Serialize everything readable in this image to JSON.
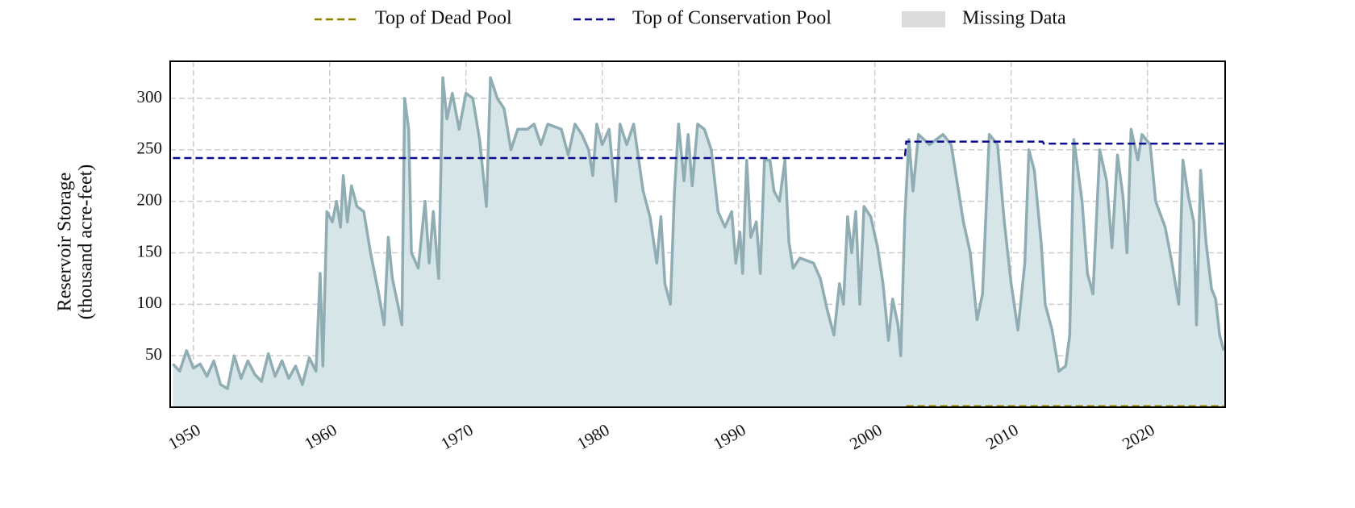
{
  "chart_data": {
    "type": "line",
    "ylabel": [
      "Reservoir Storage",
      "(thousand acre-feet)"
    ],
    "xlim": [
      1948.3,
      2025.7
    ],
    "ylim": [
      0,
      336
    ],
    "xticks": [
      1950,
      1960,
      1970,
      1980,
      1990,
      2000,
      2010,
      2020
    ],
    "yticks": [
      50,
      100,
      150,
      200,
      250,
      300
    ],
    "grid": true,
    "legend": "top",
    "series": [
      {
        "name": "Top of Dead Pool",
        "color": "#8b8000",
        "style": "dashed",
        "x": [
          2002.3,
          2025.6
        ],
        "values": [
          1,
          1
        ]
      },
      {
        "name": "Top of Conservation Pool",
        "color": "#0a0a8c",
        "style": "dashed",
        "x": [
          1948.5,
          2002.2,
          2002.3,
          2012.3,
          2012.4,
          2025.6
        ],
        "values": [
          242,
          242,
          258,
          258,
          256,
          256
        ]
      },
      {
        "name": "Missing Data",
        "color": "#dcdcdc",
        "style": "band",
        "x": [],
        "values": []
      },
      {
        "color": "#8fadb3",
        "fill": "#d6e5e7",
        "style": "area",
        "x": [
          1948.5,
          1949,
          1949.5,
          1950,
          1950.5,
          1951,
          1951.5,
          1952,
          1952.5,
          1953,
          1953.5,
          1954,
          1954.5,
          1955,
          1955.5,
          1956,
          1956.5,
          1957,
          1957.5,
          1958,
          1958.5,
          1959,
          1959.3,
          1959.5,
          1959.8,
          1960.2,
          1960.5,
          1960.8,
          1961,
          1961.3,
          1961.6,
          1962,
          1962.5,
          1963,
          1963.3,
          1963.6,
          1964,
          1964.3,
          1964.6,
          1965,
          1965.3,
          1965.5,
          1965.8,
          1966,
          1966.5,
          1967,
          1967.3,
          1967.6,
          1968,
          1968.3,
          1968.6,
          1969,
          1969.5,
          1970,
          1970.5,
          1971,
          1971.5,
          1971.8,
          1972.3,
          1972.8,
          1973.3,
          1973.8,
          1974.5,
          1975,
          1975.5,
          1976,
          1977,
          1977.5,
          1978,
          1978.5,
          1979,
          1979.3,
          1979.6,
          1980,
          1980.5,
          1981,
          1981.3,
          1981.8,
          1982.3,
          1983,
          1983.5,
          1984,
          1984.3,
          1984.6,
          1985,
          1985.3,
          1985.6,
          1986,
          1986.3,
          1986.6,
          1987,
          1987.5,
          1988,
          1988.5,
          1989,
          1989.5,
          1989.8,
          1990.1,
          1990.3,
          1990.6,
          1990.9,
          1991.3,
          1991.6,
          1991.9,
          1992.3,
          1992.6,
          1993,
          1993.4,
          1993.7,
          1994,
          1994.5,
          1995.5,
          1996,
          1996.5,
          1997,
          1997.4,
          1997.7,
          1998,
          1998.3,
          1998.6,
          1998.9,
          1999.2,
          1999.7,
          2000.2,
          2000.6,
          2001,
          2001.3,
          2001.7,
          2001.9,
          2002.2,
          2002.5,
          2002.8,
          2003.2,
          2004,
          2005,
          2005.6,
          2006.5,
          2007,
          2007.5,
          2007.9,
          2008.4,
          2009,
          2009.5,
          2010,
          2010.5,
          2011,
          2011.3,
          2011.7,
          2012.2,
          2012.5,
          2013,
          2013.5,
          2014,
          2014.3,
          2014.6,
          2015.2,
          2015.6,
          2016,
          2016.5,
          2017,
          2017.4,
          2017.8,
          2018.2,
          2018.5,
          2018.8,
          2019.3,
          2019.6,
          2020.2,
          2020.6,
          2021.3,
          2021.8,
          2022.3,
          2022.6,
          2023,
          2023.4,
          2023.6,
          2023.9,
          2024.3,
          2024.7,
          2025,
          2025.3,
          2025.6
        ],
        "values": [
          42,
          35,
          55,
          38,
          42,
          30,
          45,
          22,
          18,
          50,
          28,
          45,
          32,
          25,
          52,
          30,
          45,
          28,
          40,
          22,
          48,
          35,
          130,
          40,
          190,
          180,
          200,
          175,
          225,
          180,
          215,
          195,
          190,
          150,
          130,
          110,
          80,
          165,
          125,
          100,
          80,
          300,
          270,
          150,
          135,
          200,
          140,
          190,
          125,
          320,
          280,
          305,
          270,
          305,
          300,
          260,
          195,
          320,
          300,
          290,
          250,
          270,
          270,
          275,
          255,
          275,
          270,
          245,
          275,
          265,
          250,
          225,
          275,
          255,
          270,
          200,
          275,
          255,
          275,
          210,
          185,
          140,
          185,
          120,
          100,
          210,
          275,
          220,
          265,
          215,
          275,
          270,
          250,
          190,
          175,
          190,
          140,
          170,
          130,
          240,
          165,
          180,
          130,
          240,
          240,
          210,
          200,
          240,
          160,
          135,
          145,
          140,
          125,
          95,
          70,
          120,
          100,
          185,
          150,
          190,
          100,
          195,
          185,
          155,
          120,
          65,
          105,
          80,
          50,
          185,
          260,
          210,
          265,
          255,
          265,
          255,
          180,
          150,
          85,
          110,
          265,
          255,
          180,
          120,
          75,
          140,
          250,
          230,
          160,
          100,
          75,
          35,
          40,
          70,
          260,
          200,
          130,
          110,
          250,
          220,
          155,
          245,
          205,
          150,
          270,
          240,
          265,
          255,
          200,
          175,
          140,
          100,
          240,
          205,
          180,
          80,
          230,
          160,
          115,
          105,
          70,
          55
        ]
      }
    ]
  }
}
